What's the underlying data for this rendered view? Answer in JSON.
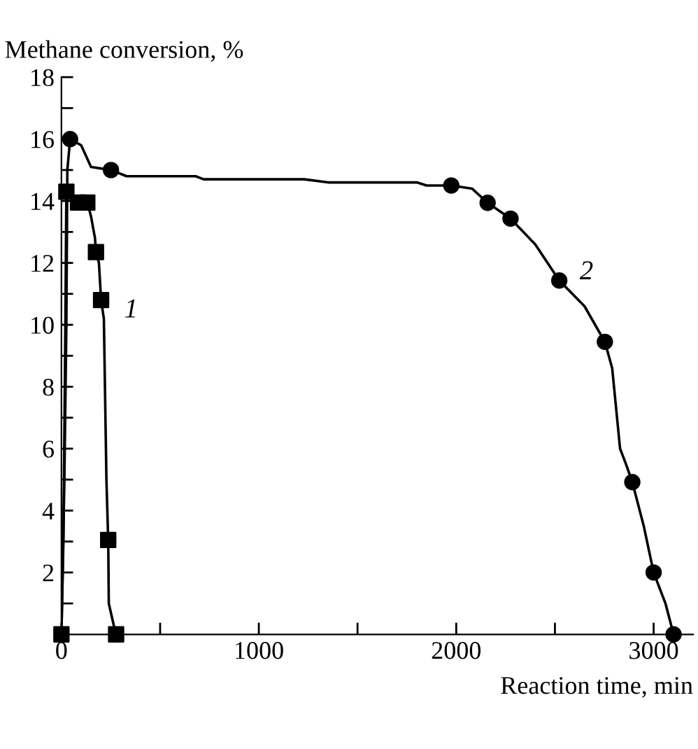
{
  "chart_data": {
    "type": "line",
    "xlabel": "Reaction time, min",
    "ylabel": "Methane conversion, %",
    "xlim": [
      0,
      3200
    ],
    "ylim": [
      0,
      18
    ],
    "xticks": [
      0,
      {
        "value": 500,
        "label": null
      },
      1000,
      {
        "value": 1500,
        "label": null
      },
      2000,
      {
        "value": 2500,
        "label": null
      },
      3000
    ],
    "yticks": [
      {
        "value": 1,
        "label": null
      },
      2,
      {
        "value": 3,
        "label": null
      },
      4,
      {
        "value": 5,
        "label": null
      },
      6,
      {
        "value": 7,
        "label": null
      },
      8,
      {
        "value": 9,
        "label": null
      },
      10,
      {
        "value": 11,
        "label": null
      },
      12,
      {
        "value": 13,
        "label": null
      },
      14,
      {
        "value": 15,
        "label": null
      },
      16,
      {
        "value": 17,
        "label": null
      },
      18
    ],
    "grid": false,
    "legend": false,
    "series": [
      {
        "name": "1",
        "marker": "none",
        "color": "#000000",
        "x": [
          0,
          10,
          20,
          25,
          84,
          131,
          150,
          170,
          175,
          190,
          201,
          215,
          228,
          237,
          240,
          265,
          277
        ],
        "values": [
          0,
          3,
          10,
          14.3,
          13.95,
          13.95,
          13.5,
          12.8,
          12.35,
          12,
          10.8,
          10.2,
          5,
          3.05,
          1,
          0.3,
          0
        ]
      },
      {
        "type": "scatter",
        "marker": "square",
        "color": "#000000",
        "x": [
          0,
          25,
          84,
          131,
          175,
          201,
          237,
          277
        ],
        "values": [
          0,
          14.3,
          13.95,
          13.95,
          12.35,
          10.8,
          3.05,
          0
        ]
      },
      {
        "name": "2",
        "marker": "none",
        "color": "#000000",
        "x": [
          0,
          15,
          25,
          30,
          44,
          100,
          150,
          251,
          330,
          680,
          720,
          1230,
          1350,
          1800,
          1850,
          1975,
          2080,
          2159,
          2275,
          2400,
          2522,
          2650,
          2753,
          2790,
          2830,
          2860,
          2892,
          2950,
          3000,
          3060,
          3101
        ],
        "values": [
          0,
          5,
          10,
          15,
          16,
          15.8,
          15.1,
          15,
          14.8,
          14.8,
          14.7,
          14.7,
          14.6,
          14.6,
          14.5,
          14.5,
          14.4,
          13.94,
          13.43,
          12.6,
          11.43,
          10.6,
          9.45,
          8.6,
          6,
          5.5,
          4.92,
          3.5,
          2.0,
          1,
          0
        ]
      },
      {
        "type": "scatter",
        "marker": "circle",
        "color": "#000000",
        "x": [
          44,
          251,
          1975,
          2159,
          2275,
          2522,
          2753,
          2892,
          3000,
          3101
        ],
        "values": [
          16,
          15,
          14.5,
          13.94,
          13.43,
          11.43,
          9.45,
          4.92,
          2.0,
          0
        ]
      }
    ]
  }
}
